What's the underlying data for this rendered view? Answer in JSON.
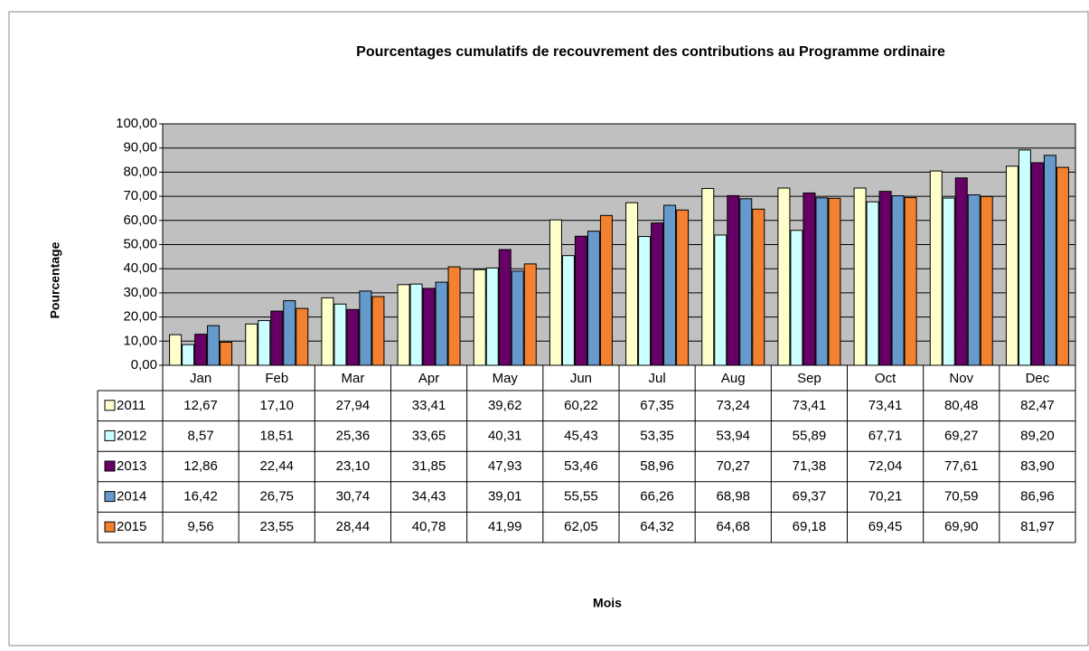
{
  "chart_data": {
    "type": "bar",
    "title": "Pourcentages cumulatifs de recouvrement des contributions au Programme ordinaire",
    "ylabel": "Pourcentage",
    "xlabel": "Mois",
    "categories": [
      "Jan",
      "Feb",
      "Mar",
      "Apr",
      "May",
      "Jun",
      "Jul",
      "Aug",
      "Sep",
      "Oct",
      "Nov",
      "Dec"
    ],
    "ylim": [
      0,
      100
    ],
    "yticks": [
      {
        "value": 0,
        "label": "0,00"
      },
      {
        "value": 10,
        "label": "10,00"
      },
      {
        "value": 20,
        "label": "20,00"
      },
      {
        "value": 30,
        "label": "30,00"
      },
      {
        "value": 40,
        "label": "40,00"
      },
      {
        "value": 50,
        "label": "50,00"
      },
      {
        "value": 60,
        "label": "60,00"
      },
      {
        "value": 70,
        "label": "70,00"
      },
      {
        "value": 80,
        "label": "80,00"
      },
      {
        "value": 90,
        "label": "90,00"
      },
      {
        "value": 100,
        "label": "100,00"
      }
    ],
    "grid": true,
    "series": [
      {
        "name": "2011",
        "color": "#ffffcc",
        "values": [
          12.67,
          17.1,
          27.94,
          33.41,
          39.62,
          60.22,
          67.35,
          73.24,
          73.41,
          73.41,
          80.48,
          82.47
        ],
        "value_labels": [
          "12,67",
          "17,10",
          "27,94",
          "33,41",
          "39,62",
          "60,22",
          "67,35",
          "73,24",
          "73,41",
          "73,41",
          "80,48",
          "82,47"
        ]
      },
      {
        "name": "2012",
        "color": "#ccffff",
        "values": [
          8.57,
          18.51,
          25.36,
          33.65,
          40.31,
          45.43,
          53.35,
          53.94,
          55.89,
          67.71,
          69.27,
          89.2
        ],
        "value_labels": [
          "8,57",
          "18,51",
          "25,36",
          "33,65",
          "40,31",
          "45,43",
          "53,35",
          "53,94",
          "55,89",
          "67,71",
          "69,27",
          "89,20"
        ]
      },
      {
        "name": "2013",
        "color": "#660066",
        "values": [
          12.86,
          22.44,
          23.1,
          31.85,
          47.93,
          53.46,
          58.96,
          70.27,
          71.38,
          72.04,
          77.61,
          83.9
        ],
        "value_labels": [
          "12,86",
          "22,44",
          "23,10",
          "31,85",
          "47,93",
          "53,46",
          "58,96",
          "70,27",
          "71,38",
          "72,04",
          "77,61",
          "83,90"
        ]
      },
      {
        "name": "2014",
        "color": "#6699cc",
        "values": [
          16.42,
          26.75,
          30.74,
          34.43,
          39.01,
          55.55,
          66.26,
          68.98,
          69.37,
          70.21,
          70.59,
          86.96
        ],
        "value_labels": [
          "16,42",
          "26,75",
          "30,74",
          "34,43",
          "39,01",
          "55,55",
          "66,26",
          "68,98",
          "69,37",
          "70,21",
          "70,59",
          "86,96"
        ]
      },
      {
        "name": "2015",
        "color": "#f4812f",
        "values": [
          9.56,
          23.55,
          28.44,
          40.78,
          41.99,
          62.05,
          64.32,
          64.68,
          69.18,
          69.45,
          69.9,
          81.97
        ],
        "value_labels": [
          "9,56",
          "23,55",
          "28,44",
          "40,78",
          "41,99",
          "62,05",
          "64,32",
          "64,68",
          "69,18",
          "69,45",
          "69,90",
          "81,97"
        ]
      }
    ]
  }
}
